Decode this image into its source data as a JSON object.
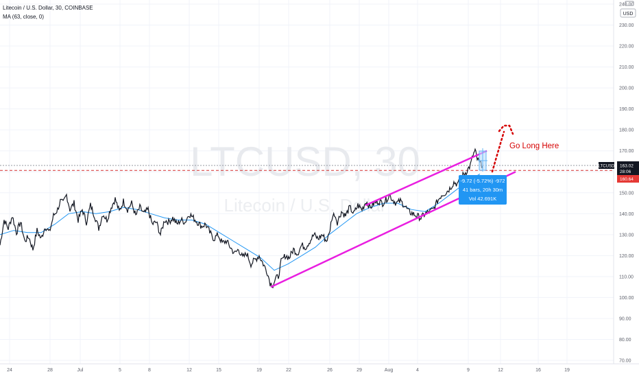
{
  "header": {
    "symbol_line": "Litecoin / U.S. Dollar, 30, COINBASE",
    "indicator_line": "MA (63, close, 0)"
  },
  "watermark": {
    "symbol": "LTCUSD, 30",
    "name": "Litecoin / U.S. Dollar"
  },
  "currency_button": "USD",
  "price_tags": {
    "symbol": "LTCUSD",
    "last": "163.02",
    "countdown": "28:06",
    "level": "160.64"
  },
  "measure": {
    "line1": "-9.72 (-5.72%) -972",
    "line2": "41 bars, 20h 30m",
    "line3": "Vol 42.691K"
  },
  "annotation": {
    "text": "Go Long Here"
  },
  "colors": {
    "price": "#131722",
    "ma": "#2196f3",
    "channel": "#e91ee0",
    "dashed": "#d32f2f",
    "note": "#d50000",
    "measure_bg": "#2196f3"
  },
  "chart_data": {
    "type": "line",
    "title": "Litecoin / U.S. Dollar, 30, COINBASE",
    "ylim": [
      70,
      240
    ],
    "y_ticks": [
      "70.00",
      "80.00",
      "90.00",
      "100.00",
      "110.00",
      "120.00",
      "130.00",
      "140.00",
      "150.00",
      "160.00",
      "170.00",
      "180.00",
      "190.00",
      "200.00",
      "210.00",
      "220.00",
      "230.00",
      "240.00"
    ],
    "x_ticks": [
      "24",
      "28",
      "Jul",
      "5",
      "8",
      "12",
      "15",
      "19",
      "22",
      "26",
      "29",
      "Aug",
      "4",
      "9",
      "12",
      "16",
      "19"
    ],
    "series": [
      {
        "values": [
          [
            0,
            125
          ],
          [
            6,
            137
          ],
          [
            12,
            133
          ],
          [
            18,
            139
          ],
          [
            24,
            131
          ],
          [
            30,
            136
          ],
          [
            36,
            127
          ],
          [
            42,
            129
          ],
          [
            48,
            123
          ],
          [
            54,
            132
          ],
          [
            60,
            128
          ],
          [
            66,
            134
          ],
          [
            72,
            131
          ],
          [
            78,
            139
          ],
          [
            84,
            142
          ],
          [
            88,
            146
          ],
          [
            92,
            145
          ],
          [
            97,
            149
          ],
          [
            102,
            142
          ],
          [
            108,
            145
          ],
          [
            114,
            137
          ],
          [
            120,
            142
          ],
          [
            126,
            136
          ],
          [
            132,
            144
          ],
          [
            138,
            139
          ],
          [
            144,
            133
          ],
          [
            150,
            140
          ],
          [
            156,
            137
          ],
          [
            162,
            143
          ],
          [
            168,
            147
          ],
          [
            174,
            141
          ],
          [
            180,
            146
          ],
          [
            186,
            142
          ],
          [
            192,
            145
          ],
          [
            198,
            139
          ],
          [
            204,
            143
          ],
          [
            210,
            140
          ],
          [
            216,
            142
          ],
          [
            222,
            135
          ],
          [
            228,
            136
          ],
          [
            234,
            130
          ],
          [
            240,
            137
          ],
          [
            246,
            136
          ],
          [
            252,
            138
          ],
          [
            258,
            135
          ],
          [
            264,
            137
          ],
          [
            270,
            136
          ],
          [
            276,
            140
          ],
          [
            282,
            138
          ],
          [
            288,
            136
          ],
          [
            294,
            134
          ],
          [
            300,
            135
          ],
          [
            306,
            131
          ],
          [
            312,
            128
          ],
          [
            318,
            130
          ],
          [
            324,
            126
          ],
          [
            330,
            127
          ],
          [
            336,
            124
          ],
          [
            342,
            121
          ],
          [
            348,
            123
          ],
          [
            354,
            119
          ],
          [
            360,
            121
          ],
          [
            366,
            116
          ],
          [
            372,
            118
          ],
          [
            378,
            120
          ],
          [
            384,
            116
          ],
          [
            390,
            112
          ],
          [
            394,
            107
          ],
          [
            398,
            106
          ],
          [
            402,
            109
          ],
          [
            406,
            110
          ],
          [
            410,
            117
          ],
          [
            416,
            120
          ],
          [
            422,
            119
          ],
          [
            428,
            123
          ],
          [
            434,
            121
          ],
          [
            440,
            125
          ],
          [
            446,
            124
          ],
          [
            452,
            127
          ],
          [
            458,
            130
          ],
          [
            464,
            128
          ],
          [
            470,
            130
          ],
          [
            476,
            127
          ],
          [
            480,
            130
          ],
          [
            484,
            138
          ],
          [
            488,
            140
          ],
          [
            492,
            136
          ],
          [
            498,
            141
          ],
          [
            504,
            139
          ],
          [
            510,
            143
          ],
          [
            516,
            140
          ],
          [
            522,
            144
          ],
          [
            528,
            142
          ],
          [
            534,
            146
          ],
          [
            540,
            143
          ],
          [
            546,
            145
          ],
          [
            552,
            146
          ],
          [
            558,
            145
          ],
          [
            564,
            147
          ],
          [
            568,
            149
          ],
          [
            572,
            147
          ],
          [
            578,
            145
          ],
          [
            584,
            146
          ],
          [
            590,
            144
          ],
          [
            596,
            141
          ],
          [
            602,
            140
          ],
          [
            608,
            139
          ],
          [
            614,
            138
          ],
          [
            620,
            140
          ],
          [
            626,
            141
          ],
          [
            632,
            142
          ],
          [
            638,
            146
          ],
          [
            644,
            149
          ],
          [
            650,
            150
          ],
          [
            656,
            152
          ],
          [
            662,
            155
          ],
          [
            668,
            154
          ],
          [
            674,
            158
          ],
          [
            680,
            160
          ],
          [
            686,
            163
          ],
          [
            690,
            168
          ],
          [
            693,
            170
          ],
          [
            696,
            166
          ],
          [
            700,
            164
          ],
          [
            704,
            163
          ]
        ]
      },
      {
        "values": [
          [
            0,
            130
          ],
          [
            20,
            132
          ],
          [
            40,
            131
          ],
          [
            60,
            131
          ],
          [
            80,
            135
          ],
          [
            100,
            140
          ],
          [
            120,
            141
          ],
          [
            140,
            140
          ],
          [
            160,
            141
          ],
          [
            180,
            143
          ],
          [
            200,
            142
          ],
          [
            220,
            140
          ],
          [
            240,
            138
          ],
          [
            260,
            137
          ],
          [
            280,
            137
          ],
          [
            300,
            135
          ],
          [
            320,
            131
          ],
          [
            340,
            127
          ],
          [
            360,
            123
          ],
          [
            380,
            119
          ],
          [
            400,
            113
          ],
          [
            420,
            116
          ],
          [
            440,
            120
          ],
          [
            460,
            124
          ],
          [
            480,
            130
          ],
          [
            500,
            135
          ],
          [
            520,
            140
          ],
          [
            540,
            143
          ],
          [
            560,
            145
          ],
          [
            580,
            145
          ],
          [
            600,
            142
          ],
          [
            620,
            141
          ],
          [
            640,
            145
          ],
          [
            660,
            150
          ],
          [
            680,
            155
          ],
          [
            700,
            159
          ]
        ]
      }
    ],
    "x_domain": [
      0,
      932
    ],
    "channel": {
      "upper": [
        [
          533,
          144
        ],
        [
          710,
          170
        ]
      ],
      "lower": [
        [
          395,
          105
        ],
        [
          752,
          160
        ]
      ]
    }
  }
}
